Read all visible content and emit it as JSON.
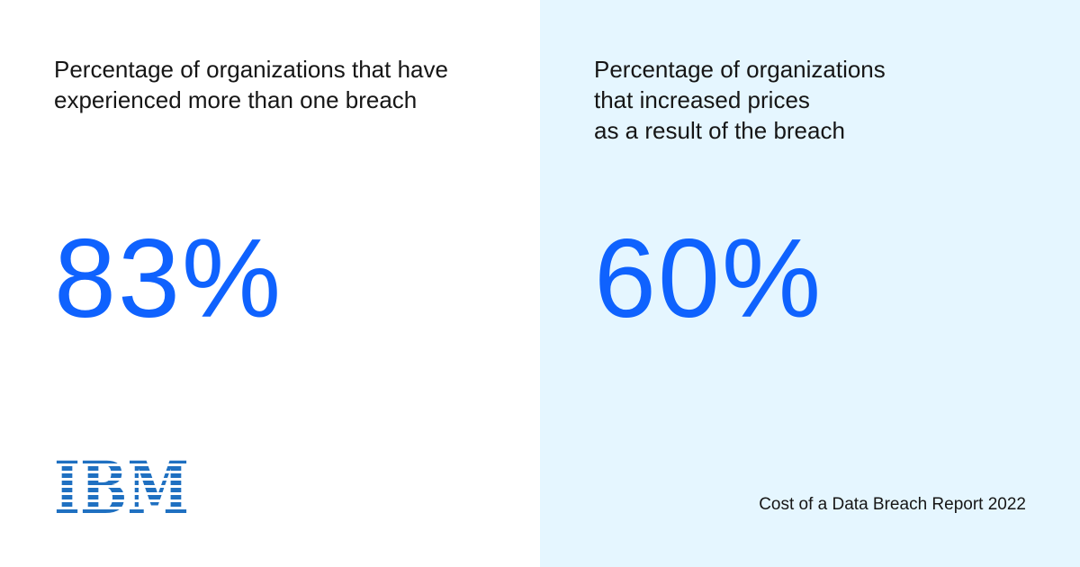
{
  "panels": [
    {
      "label": [
        "Percentage of organizations that have",
        "experienced more than one breach"
      ],
      "value": "83%"
    },
    {
      "label": [
        "Percentage of organizations",
        "that increased prices",
        "as a result of the breach"
      ],
      "value": "60%"
    }
  ],
  "logo": "IBM",
  "footer": "Cost of a Data Breach Report 2022"
}
